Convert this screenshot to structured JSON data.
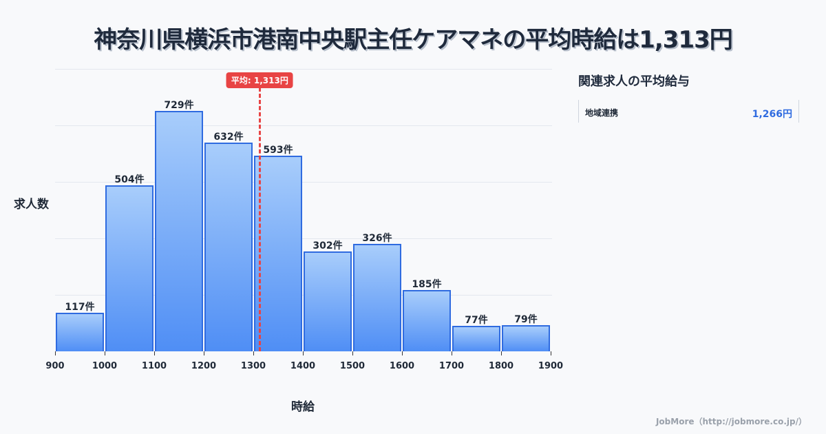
{
  "title": "神奈川県横浜市港南中央駅主任ケアマネの平均時給は1,313円",
  "chart_data": {
    "type": "bar",
    "title": "神奈川県横浜市港南中央駅主任ケアマネの平均時給は1,313円",
    "xlabel": "時給",
    "ylabel": "求人数",
    "bins": [
      {
        "from": 900,
        "to": 1000,
        "value": 117,
        "label": "117件"
      },
      {
        "from": 1000,
        "to": 1100,
        "value": 504,
        "label": "504件"
      },
      {
        "from": 1100,
        "to": 1200,
        "value": 729,
        "label": "729件"
      },
      {
        "from": 1200,
        "to": 1300,
        "value": 632,
        "label": "632件"
      },
      {
        "from": 1300,
        "to": 1400,
        "value": 593,
        "label": "593件"
      },
      {
        "from": 1400,
        "to": 1500,
        "value": 302,
        "label": "302件"
      },
      {
        "from": 1500,
        "to": 1600,
        "value": 326,
        "label": "326件"
      },
      {
        "from": 1600,
        "to": 1700,
        "value": 185,
        "label": "185件"
      },
      {
        "from": 1700,
        "to": 1800,
        "value": 77,
        "label": "77件"
      },
      {
        "from": 1800,
        "to": 1900,
        "value": 79,
        "label": "79件"
      }
    ],
    "categories": [
      "900-1000",
      "1000-1100",
      "1100-1200",
      "1200-1300",
      "1300-1400",
      "1400-1500",
      "1500-1600",
      "1600-1700",
      "1700-1800",
      "1800-1900"
    ],
    "values": [
      117,
      504,
      729,
      632,
      593,
      302,
      326,
      185,
      77,
      79
    ],
    "x_ticks": [
      "900",
      "1000",
      "1100",
      "1200",
      "1300",
      "1400",
      "1500",
      "1600",
      "1700",
      "1800",
      "1900"
    ],
    "xlim": [
      900,
      1900
    ],
    "ylim": [
      0,
      856
    ],
    "grid": true,
    "average": {
      "value": 1313,
      "label": "平均: 1,313円",
      "color": "#e84444"
    },
    "bar_color": "#4f8ef5",
    "bar_border_color": "#2f6be0"
  },
  "sidebar": {
    "title": "関連求人の平均給与",
    "items": [
      {
        "label": "地域連携",
        "value": "1,266円"
      }
    ]
  },
  "footer": "JobMore（http://jobmore.co.jp/）"
}
